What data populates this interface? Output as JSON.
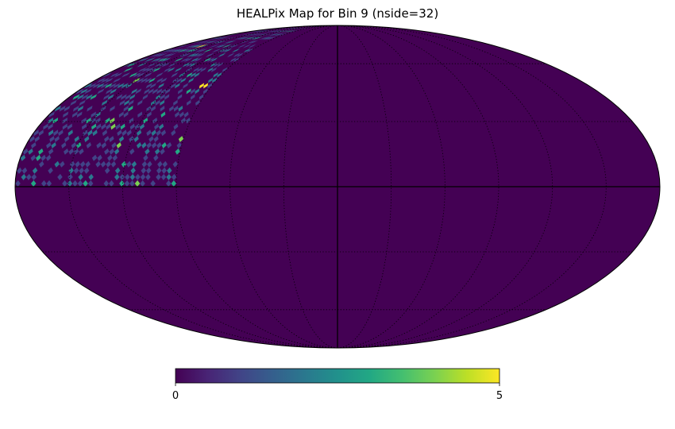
{
  "chart_data": {
    "type": "heatmap",
    "projection": "mollweide",
    "title": "HEALPix Map for Bin 9 (nside=32)",
    "nside": 32,
    "colormap": "viridis",
    "colorbar": {
      "min": 0,
      "max": 5,
      "tick_labels": [
        "0",
        "5"
      ],
      "placement": "bottom"
    },
    "graticule": {
      "enabled": true,
      "meridian_step_deg": 30,
      "parallel_step_deg": 30,
      "style": "dotted"
    },
    "background_value": 0,
    "filled_region": {
      "lon_range_deg": [
        90,
        180
      ],
      "lat_range_deg": [
        0,
        90
      ],
      "typical_values": [
        0,
        1,
        2,
        3
      ],
      "peak_values": [
        4,
        5
      ]
    }
  }
}
